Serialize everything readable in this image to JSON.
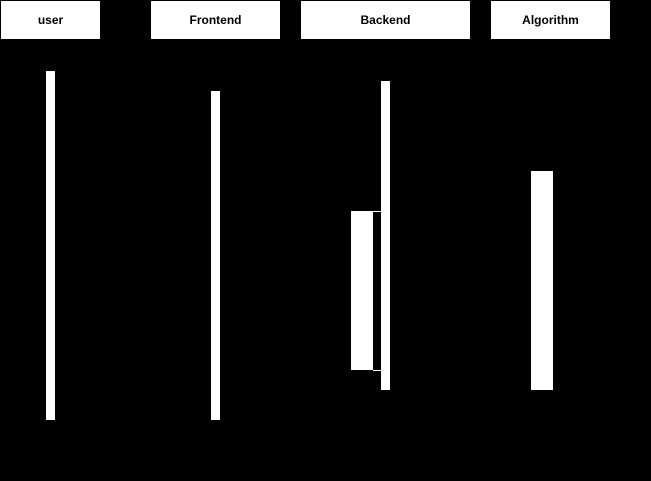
{
  "diagram": {
    "type": "sequence",
    "background": "#000000",
    "box_fill": "#ffffff",
    "participants": [
      {
        "id": "user",
        "label": "user"
      },
      {
        "id": "frontend",
        "label": "Frontend"
      },
      {
        "id": "backend",
        "label": "Backend"
      },
      {
        "id": "algorithm",
        "label": "Algorithm"
      }
    ]
  }
}
